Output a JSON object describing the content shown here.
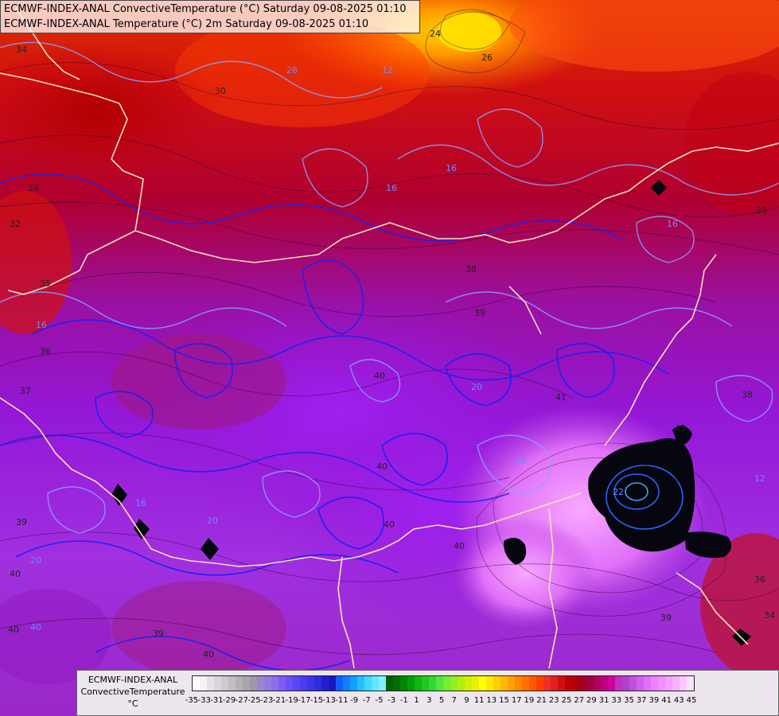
{
  "header": {
    "line1": "ECMWF-INDEX-ANAL ConvectiveTemperature (°C) Saturday 09-08-2025 01:10",
    "line2": "ECMWF-INDEX-ANAL Temperature (°C) 2m Saturday 09-08-2025 01:10"
  },
  "legend": {
    "title_line1": "ECMWF-INDEX-ANAL",
    "title_line2": "ConvectiveTemperature",
    "unit": "°C",
    "ticks": [
      "-35",
      "-33",
      "-31",
      "-29",
      "-27",
      "-25",
      "-23",
      "-21",
      "-19",
      "-17",
      "-15",
      "-13",
      "-11",
      "-9",
      "-7",
      "-5",
      "-3",
      "-1",
      "1",
      "3",
      "5",
      "7",
      "9",
      "11",
      "13",
      "15",
      "17",
      "19",
      "21",
      "23",
      "25",
      "27",
      "29",
      "31",
      "33",
      "35",
      "37",
      "39",
      "41",
      "43",
      "45"
    ],
    "colors": [
      "#ffffff",
      "#f4f0f4",
      "#e8e0e8",
      "#dcd4dc",
      "#d0c8d0",
      "#c4bcc4",
      "#b8b0b8",
      "#aca4ac",
      "#a098a8",
      "#9c84d0",
      "#9878e0",
      "#8c6cf0",
      "#7c5cf8",
      "#6c50f8",
      "#5c44f8",
      "#4c3cf0",
      "#3c34e8",
      "#2c2ce0",
      "#2020d0",
      "#1818c0",
      "#1060ff",
      "#1080ff",
      "#10a0ff",
      "#20c0ff",
      "#40d8ff",
      "#60e8ff",
      "#80f0ff",
      "#006000",
      "#007000",
      "#008800",
      "#00a000",
      "#10b810",
      "#20c820",
      "#30d830",
      "#50e840",
      "#70f030",
      "#90f020",
      "#b0f010",
      "#d0f000",
      "#e8f000",
      "#ffff00",
      "#ffe800",
      "#ffd000",
      "#ffb800",
      "#ffa000",
      "#ff8800",
      "#ff7000",
      "#ff5800",
      "#ff4000",
      "#f03020",
      "#e02020",
      "#d01010",
      "#c00000",
      "#b00010",
      "#a00020",
      "#a00040",
      "#b00060",
      "#c00080",
      "#d000a0",
      "#c030c0",
      "#b040d0",
      "#c050e0",
      "#d060f0",
      "#e070f8",
      "#f080ff",
      "#f090ff",
      "#f4a0ff",
      "#f8b0ff",
      "#fcc8ff",
      "#ffe0ff"
    ]
  },
  "contour_labels": [
    {
      "t": "34"
    },
    {
      "t": "30"
    },
    {
      "t": "26"
    },
    {
      "t": "28"
    },
    {
      "t": "24"
    },
    {
      "t": "12"
    },
    {
      "t": "16"
    },
    {
      "t": "16"
    },
    {
      "t": "16"
    },
    {
      "t": "34"
    },
    {
      "t": "32"
    },
    {
      "t": "35"
    },
    {
      "t": "36"
    },
    {
      "t": "37"
    },
    {
      "t": "16"
    },
    {
      "t": "38"
    },
    {
      "t": "39"
    },
    {
      "t": "40"
    },
    {
      "t": "40"
    },
    {
      "t": "41"
    },
    {
      "t": "20"
    },
    {
      "t": "18"
    },
    {
      "t": "40"
    },
    {
      "t": "39"
    },
    {
      "t": "20"
    },
    {
      "t": "20"
    },
    {
      "t": "40"
    },
    {
      "t": "40"
    },
    {
      "t": "39"
    },
    {
      "t": "40"
    },
    {
      "t": "40"
    },
    {
      "t": "36"
    },
    {
      "t": "34"
    },
    {
      "t": "39"
    },
    {
      "t": "22"
    },
    {
      "t": "43"
    },
    {
      "t": "35"
    },
    {
      "t": "12"
    },
    {
      "t": "16"
    },
    {
      "t": "38"
    },
    {
      "t": "40"
    }
  ]
}
